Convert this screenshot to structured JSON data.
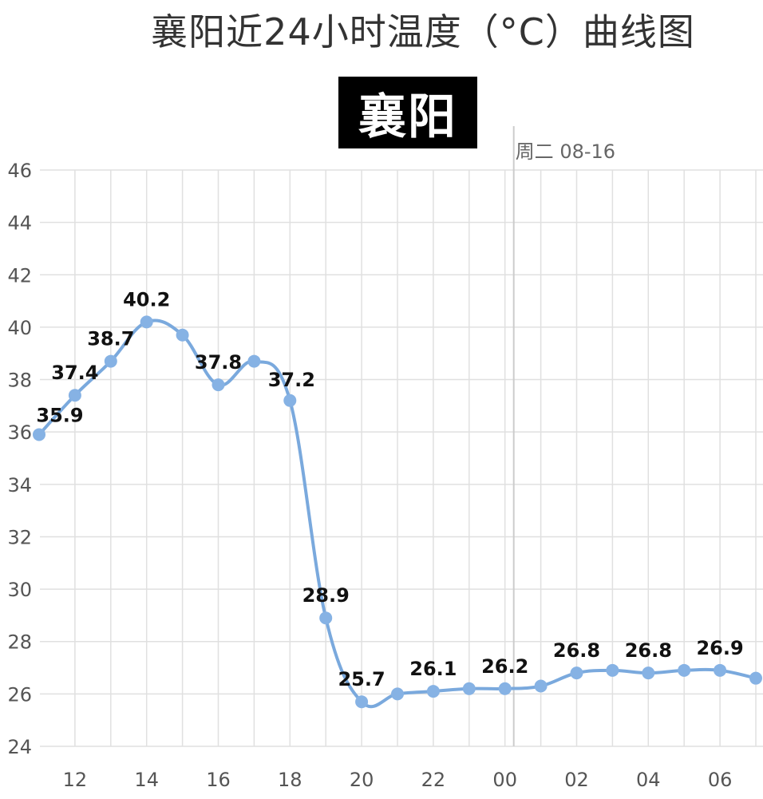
{
  "title": "襄阳近24小时温度（°C）曲线图",
  "city": "襄阳",
  "date_marker": "周二 08-16",
  "colors": {
    "line": "#7aa9dd",
    "point": "#86b2e4",
    "badge_bg": "#000000"
  },
  "chart_data": {
    "type": "line",
    "title": "襄阳近24小时温度（°C）曲线图",
    "xlabel": "",
    "ylabel": "",
    "ylim": [
      24,
      46
    ],
    "yticks": [
      "24",
      "26",
      "28",
      "30",
      "32",
      "34",
      "36",
      "38",
      "40",
      "42",
      "44",
      "46"
    ],
    "x_tick_labels": [
      "12",
      "14",
      "16",
      "18",
      "20",
      "22",
      "00",
      "02",
      "04",
      "06"
    ],
    "grid": true,
    "hours": [
      "11",
      "12",
      "13",
      "14",
      "15",
      "16",
      "17",
      "18",
      "19",
      "20",
      "21",
      "22",
      "23",
      "00",
      "01",
      "02",
      "03",
      "04",
      "05",
      "06",
      "07"
    ],
    "values": [
      35.9,
      37.4,
      38.7,
      40.2,
      39.7,
      37.8,
      38.7,
      37.2,
      28.9,
      25.7,
      26.0,
      26.1,
      26.2,
      26.2,
      26.3,
      26.8,
      26.9,
      26.8,
      26.9,
      26.9,
      26.6
    ],
    "data_labels": [
      {
        "hour": "11",
        "text": "35.9"
      },
      {
        "hour": "12",
        "text": "37.4"
      },
      {
        "hour": "13",
        "text": "38.7"
      },
      {
        "hour": "14",
        "text": "40.2"
      },
      {
        "hour": "16",
        "text": "37.8"
      },
      {
        "hour": "18",
        "text": "37.2"
      },
      {
        "hour": "19",
        "text": "28.9"
      },
      {
        "hour": "20",
        "text": "25.7"
      },
      {
        "hour": "22",
        "text": "26.1"
      },
      {
        "hour": "00",
        "text": "26.2"
      },
      {
        "hour": "02",
        "text": "26.8"
      },
      {
        "hour": "04",
        "text": "26.8"
      },
      {
        "hour": "06",
        "text": "26.9"
      }
    ],
    "date_divider_hour": "00"
  }
}
